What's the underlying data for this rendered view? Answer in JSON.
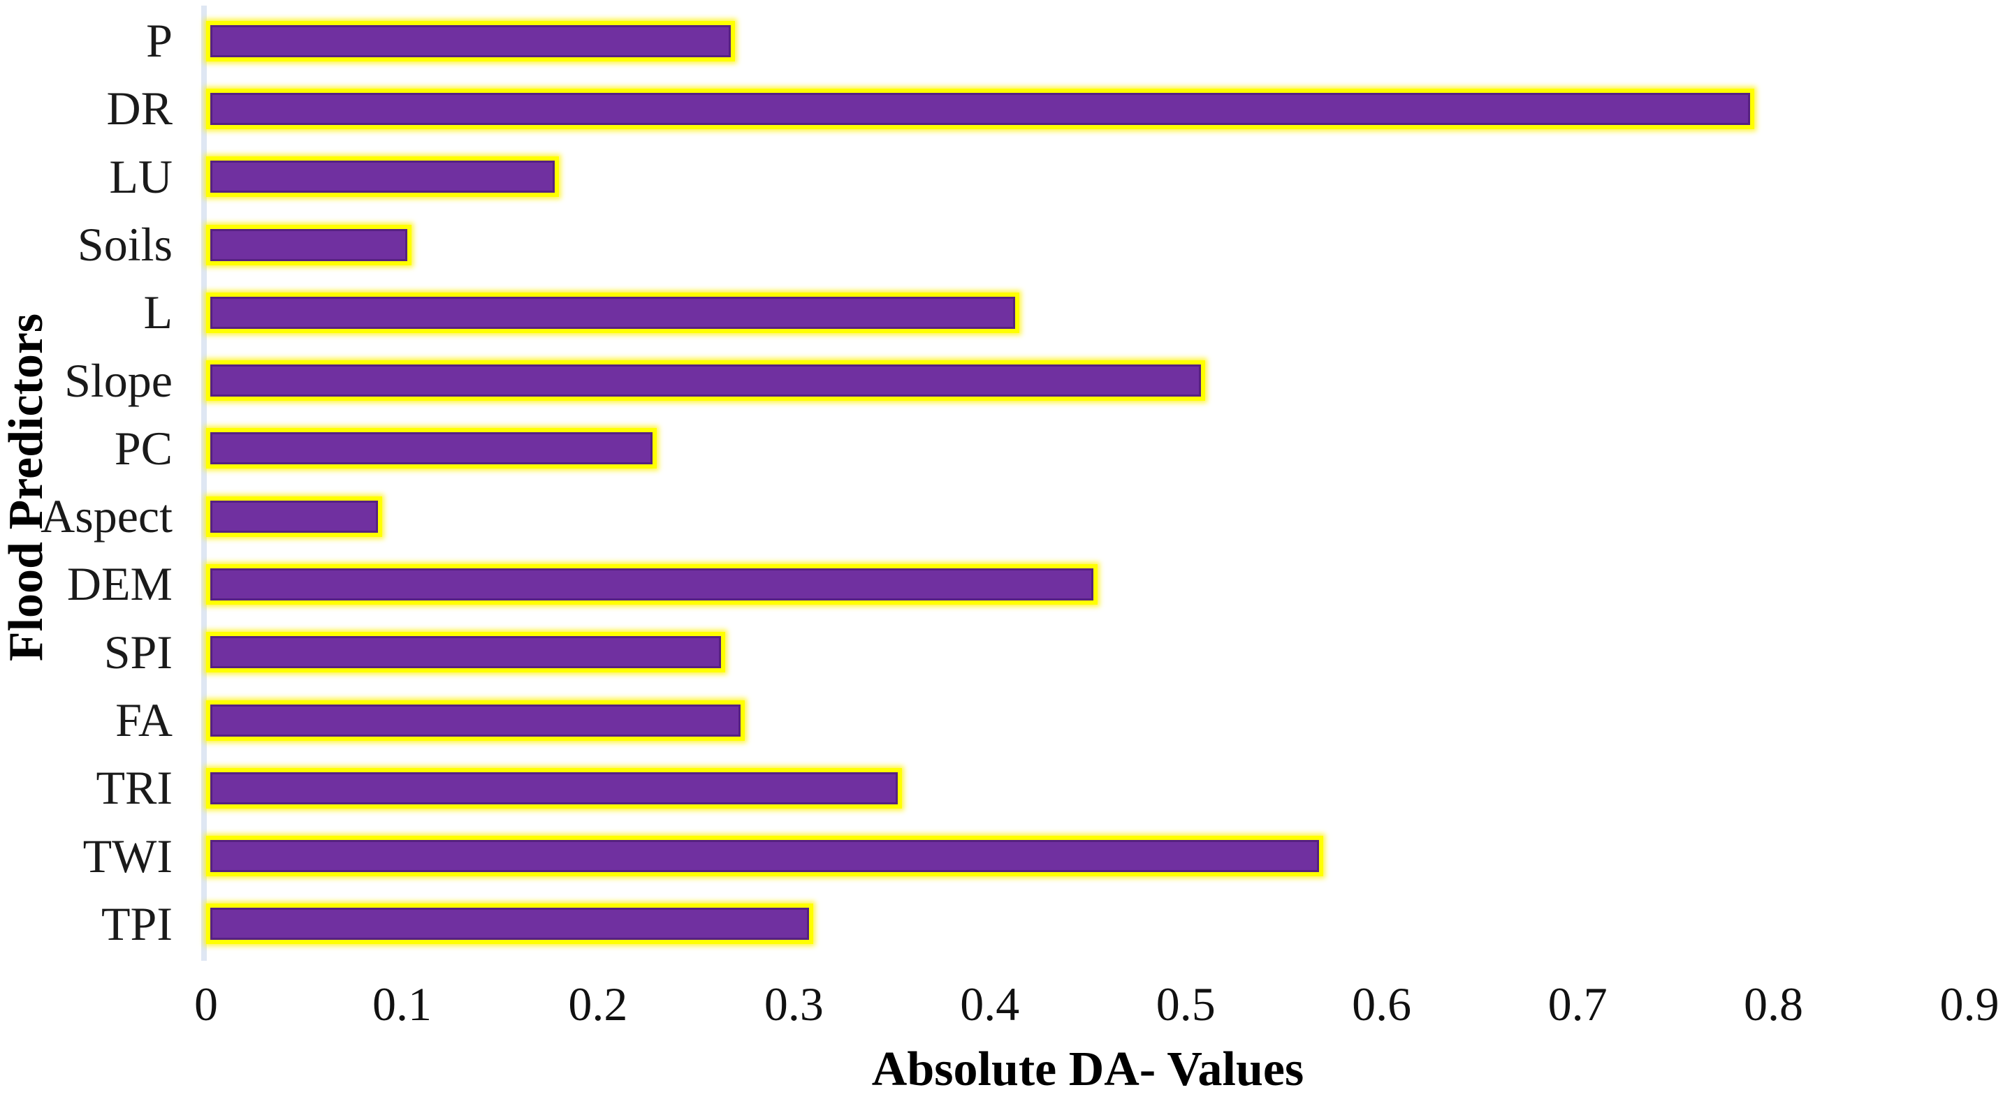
{
  "chart_data": {
    "type": "bar",
    "orientation": "horizontal",
    "title": "",
    "xlabel": "Absolute DA- Values",
    "ylabel": "Flood Predictors",
    "categories": [
      "P",
      "DR",
      "LU",
      "Soils",
      "L",
      "Slope",
      "PC",
      "Aspect",
      "DEM",
      "SPI",
      "FA",
      "TRI",
      "TWI",
      "TPI"
    ],
    "values": [
      0.27,
      0.79,
      0.18,
      0.105,
      0.415,
      0.51,
      0.23,
      0.09,
      0.455,
      0.265,
      0.275,
      0.355,
      0.57,
      0.31
    ],
    "xlim": [
      0,
      0.9
    ],
    "xticks": [
      0,
      0.1,
      0.2,
      0.3,
      0.4,
      0.5,
      0.6,
      0.7,
      0.8,
      0.9
    ],
    "xtick_labels": [
      "0",
      "0.1",
      "0.2",
      "0.3",
      "0.4",
      "0.5",
      "0.6",
      "0.7",
      "0.8",
      "0.9"
    ],
    "grid": false,
    "legend": null,
    "colors": {
      "bar_fill": "#7030A0",
      "bar_border": "#FFFF00",
      "axis_line": "#DFE7F3",
      "text": "#000000",
      "background": "#FFFFFF"
    }
  }
}
